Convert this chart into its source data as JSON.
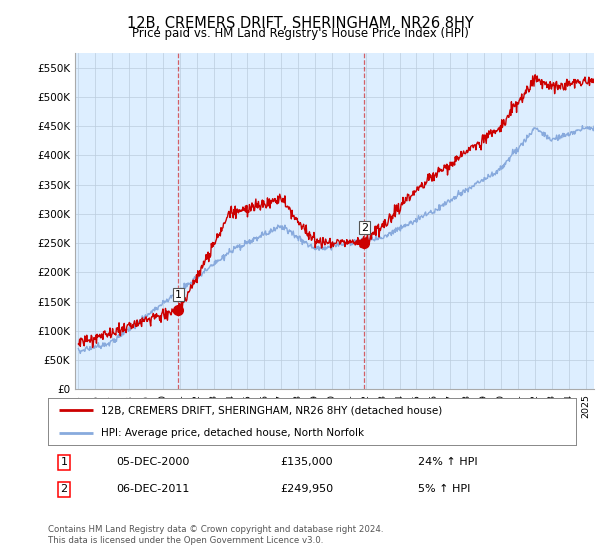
{
  "title": "12B, CREMERS DRIFT, SHERINGHAM, NR26 8HY",
  "subtitle": "Price paid vs. HM Land Registry's House Price Index (HPI)",
  "ylabel_ticks": [
    "£0",
    "£50K",
    "£100K",
    "£150K",
    "£200K",
    "£250K",
    "£300K",
    "£350K",
    "£400K",
    "£450K",
    "£500K",
    "£550K"
  ],
  "ytick_values": [
    0,
    50000,
    100000,
    150000,
    200000,
    250000,
    300000,
    350000,
    400000,
    450000,
    500000,
    550000
  ],
  "ylim": [
    0,
    575000
  ],
  "xlim_start": 1994.8,
  "xlim_end": 2025.5,
  "sale1_x": 2000.92,
  "sale1_y": 135000,
  "sale2_x": 2011.92,
  "sale2_y": 249950,
  "sale_color": "#cc0000",
  "hpi_color": "#88aadd",
  "chart_bg": "#ddeeff",
  "grid_color": "#bbccdd",
  "legend_line1": "12B, CREMERS DRIFT, SHERINGHAM, NR26 8HY (detached house)",
  "legend_line2": "HPI: Average price, detached house, North Norfolk",
  "annotation1_date": "05-DEC-2000",
  "annotation1_price": "£135,000",
  "annotation1_hpi": "24% ↑ HPI",
  "annotation2_date": "06-DEC-2011",
  "annotation2_price": "£249,950",
  "annotation2_hpi": "5% ↑ HPI",
  "footnote": "Contains HM Land Registry data © Crown copyright and database right 2024.\nThis data is licensed under the Open Government Licence v3.0."
}
